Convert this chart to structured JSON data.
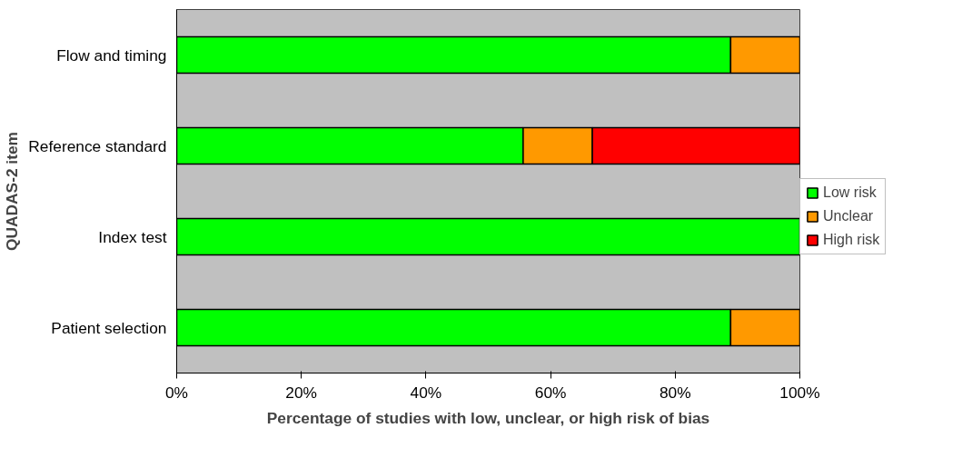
{
  "chart_data": {
    "type": "bar",
    "orientation": "horizontal",
    "stacked": true,
    "xlabel": "Percentage of studies with low, unclear, or high risk of bias",
    "ylabel": "QUADAS-2 item",
    "categories": [
      "Flow and timing",
      "Reference standard",
      "Index test",
      "Patient selection"
    ],
    "series": [
      {
        "name": "Low risk",
        "color": "#00ff00",
        "values": [
          88.9,
          55.6,
          100,
          88.9
        ]
      },
      {
        "name": "Unclear",
        "color": "#ff9900",
        "values": [
          11.1,
          11.1,
          0,
          11.1
        ]
      },
      {
        "name": "High risk",
        "color": "#ff0000",
        "values": [
          0,
          33.3,
          0,
          0
        ]
      }
    ],
    "xlim": [
      0,
      100
    ],
    "xticks": [
      {
        "value": 0,
        "label": "0%"
      },
      {
        "value": 20,
        "label": "20%"
      },
      {
        "value": 40,
        "label": "40%"
      },
      {
        "value": 60,
        "label": "60%"
      },
      {
        "value": 80,
        "label": "80%"
      },
      {
        "value": 100,
        "label": "100%"
      }
    ],
    "grid": false,
    "legend": "right"
  }
}
